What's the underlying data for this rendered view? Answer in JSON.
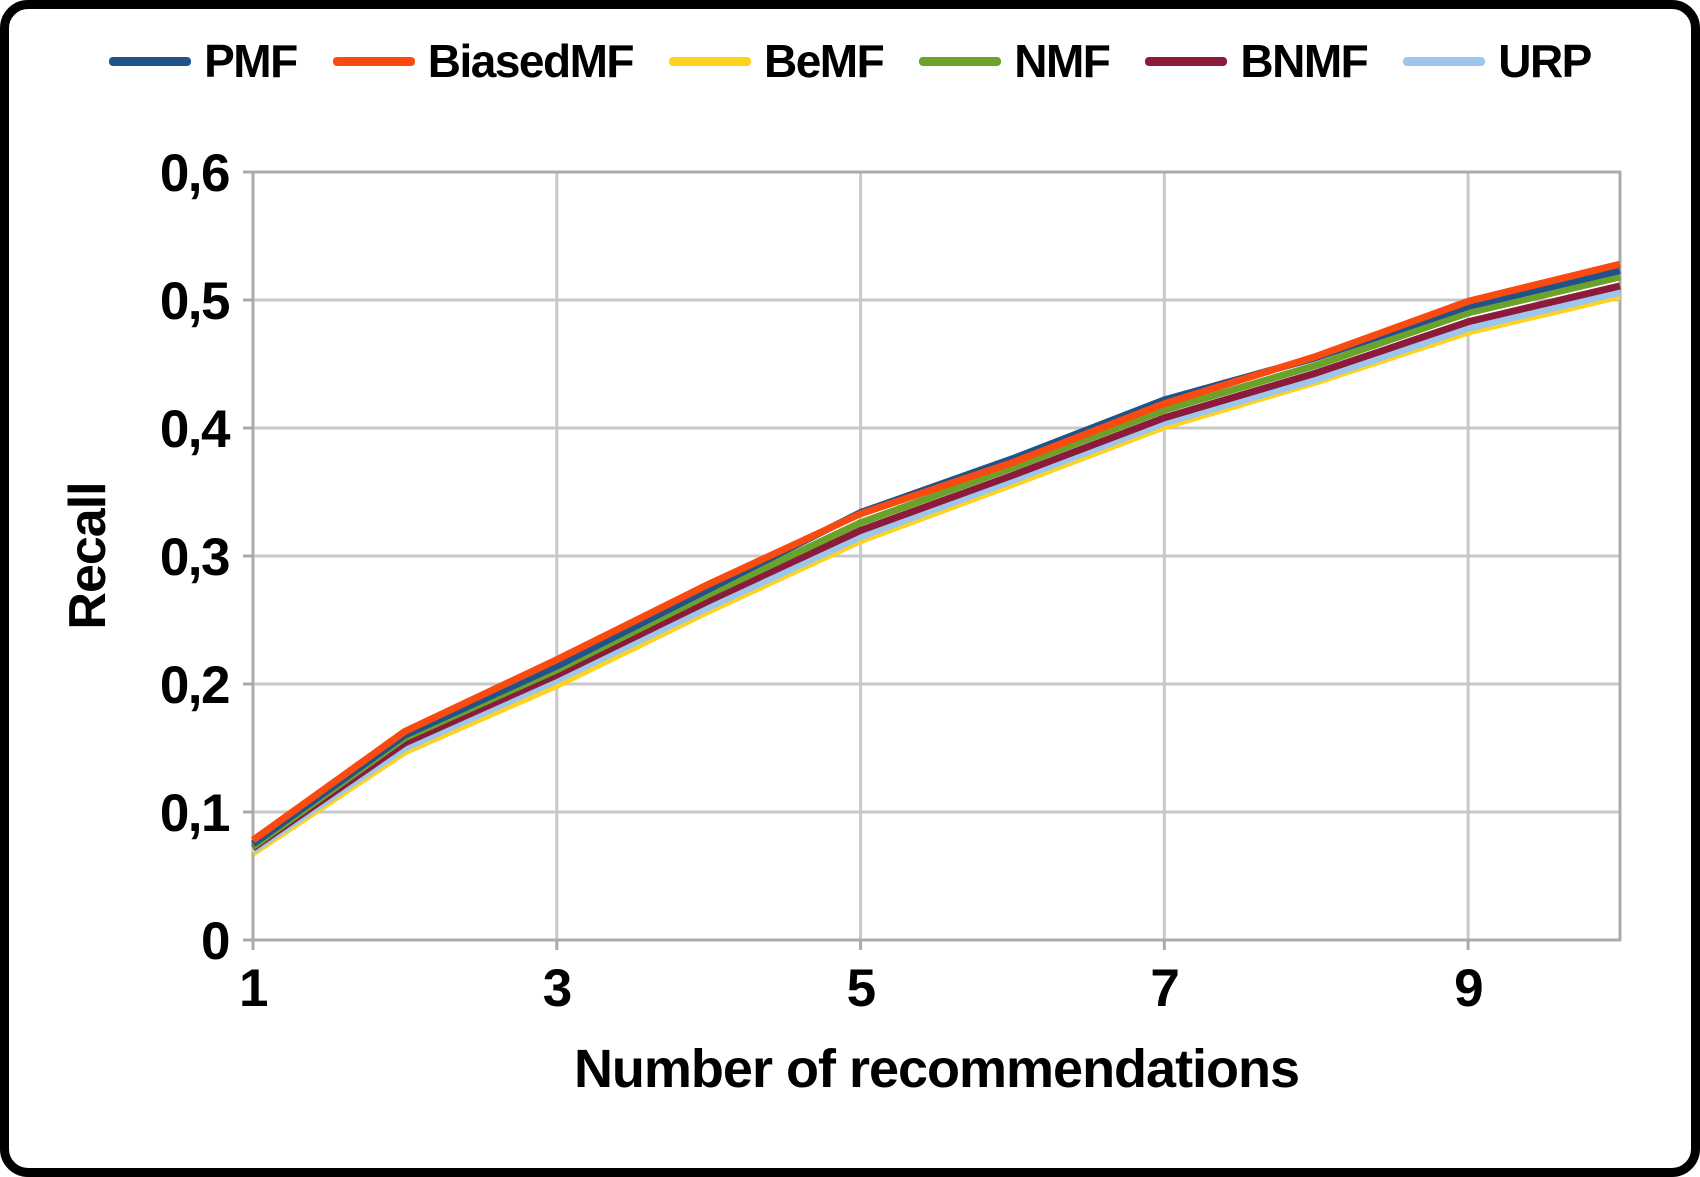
{
  "chart_data": {
    "type": "line",
    "title": "",
    "xlabel": "Number of recommendations",
    "ylabel": "Recall",
    "xlim": [
      1,
      10
    ],
    "ylim": [
      0,
      0.6
    ],
    "grid": true,
    "legend_position": "top",
    "x": [
      1,
      2,
      3,
      4,
      5,
      6,
      7,
      8,
      9,
      10
    ],
    "x_ticks": [
      {
        "v": 1,
        "label": "1"
      },
      {
        "v": 3,
        "label": "3"
      },
      {
        "v": 5,
        "label": "5"
      },
      {
        "v": 7,
        "label": "7"
      },
      {
        "v": 9,
        "label": "9"
      }
    ],
    "x_gridlines": [
      3,
      5,
      7,
      9
    ],
    "y_ticks": [
      {
        "v": 0,
        "label": "0"
      },
      {
        "v": 0.1,
        "label": "0,1"
      },
      {
        "v": 0.2,
        "label": "0,2"
      },
      {
        "v": 0.3,
        "label": "0,3"
      },
      {
        "v": 0.4,
        "label": "0,4"
      },
      {
        "v": 0.5,
        "label": "0,5"
      },
      {
        "v": 0.6,
        "label": "0,6"
      }
    ],
    "series": [
      {
        "name": "PMF",
        "color": "#21538B",
        "values": [
          0.075,
          0.16,
          0.214,
          0.274,
          0.334,
          0.376,
          0.422,
          0.455,
          0.495,
          0.523
        ]
      },
      {
        "name": "BiasedMF",
        "color": "#FA4A10",
        "values": [
          0.078,
          0.163,
          0.219,
          0.278,
          0.333,
          0.373,
          0.419,
          0.456,
          0.499,
          0.528
        ]
      },
      {
        "name": "BeMF",
        "color": "#FFD21E",
        "values": [
          0.068,
          0.147,
          0.199,
          0.257,
          0.312,
          0.356,
          0.401,
          0.436,
          0.475,
          0.503
        ]
      },
      {
        "name": "NMF",
        "color": "#6BA32A",
        "values": [
          0.073,
          0.158,
          0.211,
          0.27,
          0.326,
          0.369,
          0.414,
          0.449,
          0.49,
          0.518
        ]
      },
      {
        "name": "BNMF",
        "color": "#8C1B3B",
        "values": [
          0.072,
          0.154,
          0.207,
          0.265,
          0.32,
          0.363,
          0.408,
          0.443,
          0.483,
          0.511
        ]
      },
      {
        "name": "URP",
        "color": "#9CC6EE",
        "values": [
          0.07,
          0.15,
          0.203,
          0.26,
          0.315,
          0.359,
          0.404,
          0.438,
          0.478,
          0.506
        ]
      }
    ],
    "draw_order": [
      "BeMF",
      "URP",
      "BNMF",
      "NMF",
      "PMF",
      "BiasedMF"
    ]
  },
  "styles": {
    "grid_color": "#C9C9C9",
    "axis_color": "#ABABAB",
    "frame_color": "#000000",
    "background": "#FFFFFF",
    "text_color": "#000000"
  }
}
